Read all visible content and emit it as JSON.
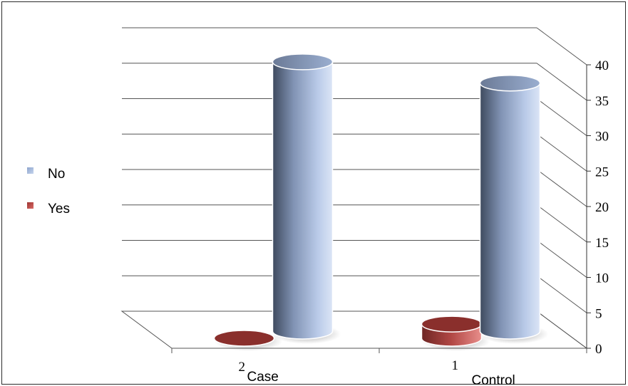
{
  "chart_data": {
    "type": "bar",
    "style": "3d-cylinder",
    "categories": [
      "Case",
      "Control"
    ],
    "category_numbers": [
      "2",
      "1"
    ],
    "series": [
      {
        "name": "Yes",
        "values": [
          0,
          2
        ],
        "color": "#c0504d"
      },
      {
        "name": "No",
        "values": [
          38,
          35
        ],
        "color": "#a5bde2"
      }
    ],
    "ylim": [
      0,
      40
    ],
    "yticks": [
      "0",
      "5",
      "10",
      "15",
      "20",
      "25",
      "30",
      "35",
      "40"
    ],
    "y_axis_position": "right",
    "legend_position": "left",
    "grid": true
  }
}
